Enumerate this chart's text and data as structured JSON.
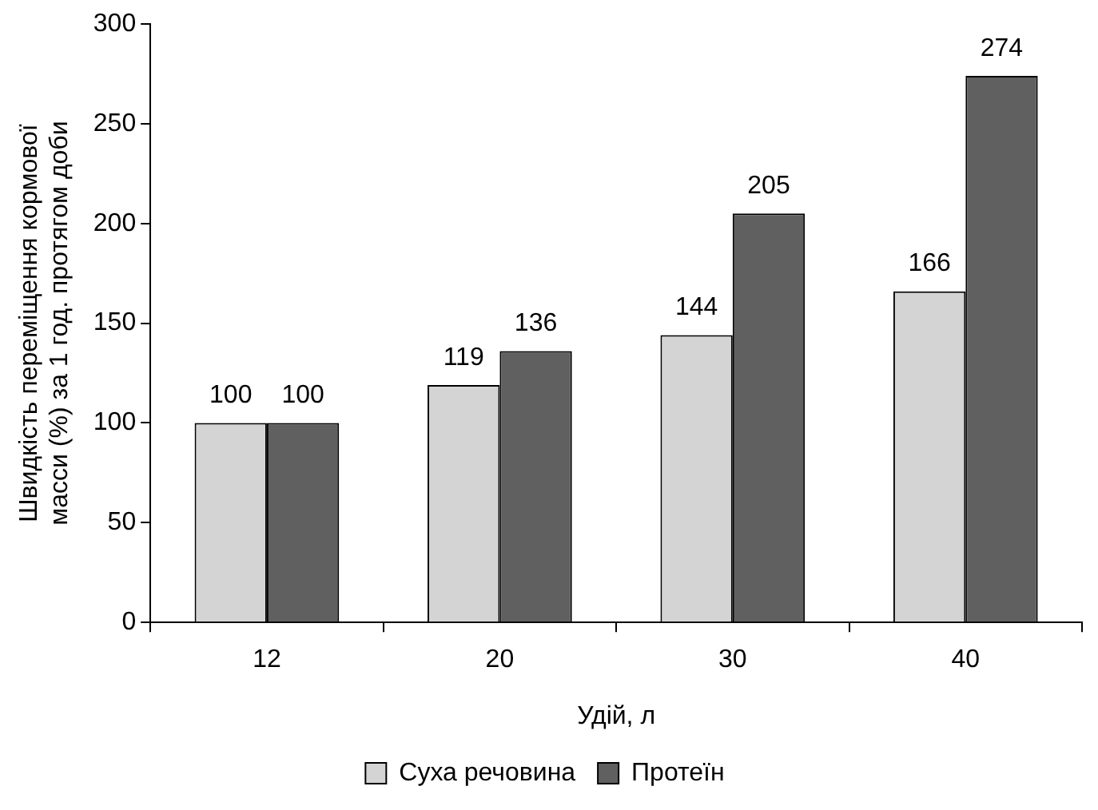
{
  "chart_data": {
    "type": "bar",
    "xlabel": "Удій, л",
    "ylabel": "Швидкість переміщення кормової\nмасси (%) за 1 год. протягом доби",
    "categories": [
      "12",
      "20",
      "30",
      "40"
    ],
    "series": [
      {
        "name": "Суха речовина",
        "color": "#d4d4d4",
        "values": [
          100,
          119,
          144,
          166
        ]
      },
      {
        "name": "Протеїн",
        "color": "#606060",
        "values": [
          100,
          136,
          205,
          274
        ]
      }
    ],
    "ylim": [
      0,
      300
    ],
    "yticks": [
      0,
      50,
      100,
      150,
      200,
      250,
      300
    ],
    "grid": false,
    "legend": "bottom",
    "data_labels": true
  }
}
